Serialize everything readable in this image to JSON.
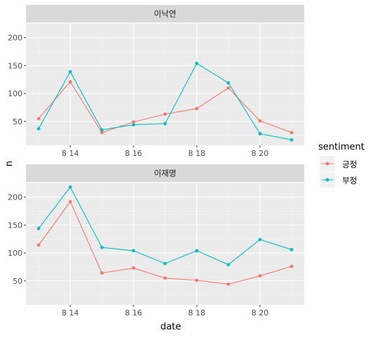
{
  "chart_data": {
    "type": "line",
    "xlabel": "date",
    "ylabel": "n",
    "x": [
      13,
      14,
      15,
      16,
      17,
      18,
      19,
      20,
      21
    ],
    "x_ticks": [
      14,
      16,
      18,
      20
    ],
    "x_tick_labels": [
      "8 14",
      "8 16",
      "8 18",
      "8 20"
    ],
    "xlim": [
      12.6,
      21.4
    ],
    "ylim": [
      7,
      226
    ],
    "y_ticks": [
      50,
      100,
      150,
      200
    ],
    "y_tick_labels": [
      "50",
      "100",
      "150",
      "200"
    ],
    "grid": true,
    "legend": {
      "title": "sentiment",
      "placement": "right",
      "entries": [
        {
          "label": "긍정",
          "color": "#F8766D"
        },
        {
          "label": "부정",
          "color": "#00BFC4"
        }
      ]
    },
    "panels": [
      {
        "strip_label": "이낙연",
        "series": [
          {
            "name": "긍정",
            "color": "#F8766D",
            "values": [
              55,
              121,
              30,
              49,
              63,
              73,
              110,
              51,
              30
            ]
          },
          {
            "name": "부정",
            "color": "#00BFC4",
            "values": [
              37,
              139,
              35,
              44,
              46,
              154,
              119,
              28,
              17
            ]
          }
        ]
      },
      {
        "strip_label": "이재명",
        "series": [
          {
            "name": "긍정",
            "color": "#F8766D",
            "values": [
              114,
              192,
              64,
              73,
              55,
              51,
              44,
              59,
              76
            ]
          },
          {
            "name": "부정",
            "color": "#00BFC4",
            "values": [
              144,
              218,
              110,
              104,
              81,
              104,
              79,
              124,
              106
            ]
          }
        ]
      }
    ]
  }
}
